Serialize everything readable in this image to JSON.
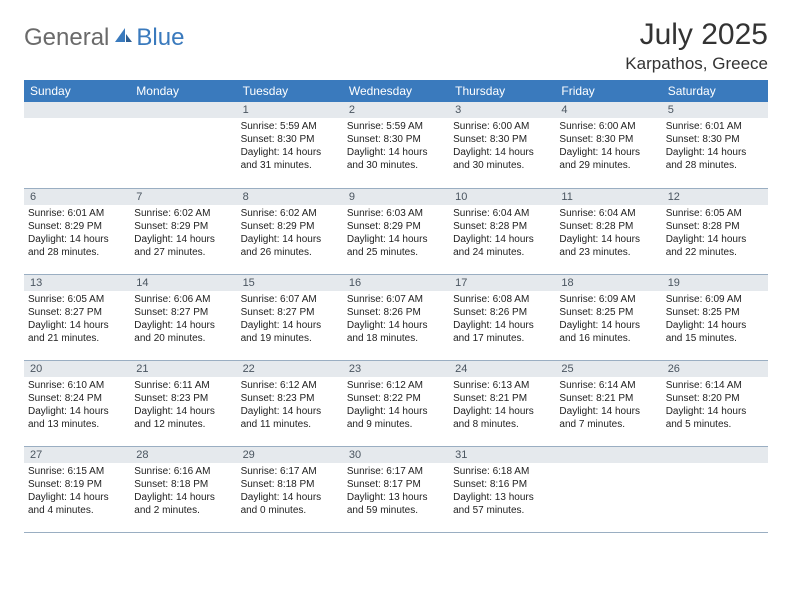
{
  "logo": {
    "word1": "General",
    "word2": "Blue"
  },
  "title": "July 2025",
  "subtitle": "Karpathos, Greece",
  "colors": {
    "header_bg": "#3a7abd",
    "header_text": "#ffffff",
    "daynum_bg": "#e5e9ed",
    "daynum_text": "#4a5560",
    "border": "#9aaec2",
    "title_text": "#333333",
    "body_text": "#222222",
    "logo_gray": "#6a6a6a",
    "logo_blue": "#3a7abd"
  },
  "day_names": [
    "Sunday",
    "Monday",
    "Tuesday",
    "Wednesday",
    "Thursday",
    "Friday",
    "Saturday"
  ],
  "leading_blanks": 2,
  "days": [
    {
      "n": 1,
      "sunrise": "5:59 AM",
      "sunset": "8:30 PM",
      "daylight": "14 hours and 31 minutes."
    },
    {
      "n": 2,
      "sunrise": "5:59 AM",
      "sunset": "8:30 PM",
      "daylight": "14 hours and 30 minutes."
    },
    {
      "n": 3,
      "sunrise": "6:00 AM",
      "sunset": "8:30 PM",
      "daylight": "14 hours and 30 minutes."
    },
    {
      "n": 4,
      "sunrise": "6:00 AM",
      "sunset": "8:30 PM",
      "daylight": "14 hours and 29 minutes."
    },
    {
      "n": 5,
      "sunrise": "6:01 AM",
      "sunset": "8:30 PM",
      "daylight": "14 hours and 28 minutes."
    },
    {
      "n": 6,
      "sunrise": "6:01 AM",
      "sunset": "8:29 PM",
      "daylight": "14 hours and 28 minutes."
    },
    {
      "n": 7,
      "sunrise": "6:02 AM",
      "sunset": "8:29 PM",
      "daylight": "14 hours and 27 minutes."
    },
    {
      "n": 8,
      "sunrise": "6:02 AM",
      "sunset": "8:29 PM",
      "daylight": "14 hours and 26 minutes."
    },
    {
      "n": 9,
      "sunrise": "6:03 AM",
      "sunset": "8:29 PM",
      "daylight": "14 hours and 25 minutes."
    },
    {
      "n": 10,
      "sunrise": "6:04 AM",
      "sunset": "8:28 PM",
      "daylight": "14 hours and 24 minutes."
    },
    {
      "n": 11,
      "sunrise": "6:04 AM",
      "sunset": "8:28 PM",
      "daylight": "14 hours and 23 minutes."
    },
    {
      "n": 12,
      "sunrise": "6:05 AM",
      "sunset": "8:28 PM",
      "daylight": "14 hours and 22 minutes."
    },
    {
      "n": 13,
      "sunrise": "6:05 AM",
      "sunset": "8:27 PM",
      "daylight": "14 hours and 21 minutes."
    },
    {
      "n": 14,
      "sunrise": "6:06 AM",
      "sunset": "8:27 PM",
      "daylight": "14 hours and 20 minutes."
    },
    {
      "n": 15,
      "sunrise": "6:07 AM",
      "sunset": "8:27 PM",
      "daylight": "14 hours and 19 minutes."
    },
    {
      "n": 16,
      "sunrise": "6:07 AM",
      "sunset": "8:26 PM",
      "daylight": "14 hours and 18 minutes."
    },
    {
      "n": 17,
      "sunrise": "6:08 AM",
      "sunset": "8:26 PM",
      "daylight": "14 hours and 17 minutes."
    },
    {
      "n": 18,
      "sunrise": "6:09 AM",
      "sunset": "8:25 PM",
      "daylight": "14 hours and 16 minutes."
    },
    {
      "n": 19,
      "sunrise": "6:09 AM",
      "sunset": "8:25 PM",
      "daylight": "14 hours and 15 minutes."
    },
    {
      "n": 20,
      "sunrise": "6:10 AM",
      "sunset": "8:24 PM",
      "daylight": "14 hours and 13 minutes."
    },
    {
      "n": 21,
      "sunrise": "6:11 AM",
      "sunset": "8:23 PM",
      "daylight": "14 hours and 12 minutes."
    },
    {
      "n": 22,
      "sunrise": "6:12 AM",
      "sunset": "8:23 PM",
      "daylight": "14 hours and 11 minutes."
    },
    {
      "n": 23,
      "sunrise": "6:12 AM",
      "sunset": "8:22 PM",
      "daylight": "14 hours and 9 minutes."
    },
    {
      "n": 24,
      "sunrise": "6:13 AM",
      "sunset": "8:21 PM",
      "daylight": "14 hours and 8 minutes."
    },
    {
      "n": 25,
      "sunrise": "6:14 AM",
      "sunset": "8:21 PM",
      "daylight": "14 hours and 7 minutes."
    },
    {
      "n": 26,
      "sunrise": "6:14 AM",
      "sunset": "8:20 PM",
      "daylight": "14 hours and 5 minutes."
    },
    {
      "n": 27,
      "sunrise": "6:15 AM",
      "sunset": "8:19 PM",
      "daylight": "14 hours and 4 minutes."
    },
    {
      "n": 28,
      "sunrise": "6:16 AM",
      "sunset": "8:18 PM",
      "daylight": "14 hours and 2 minutes."
    },
    {
      "n": 29,
      "sunrise": "6:17 AM",
      "sunset": "8:18 PM",
      "daylight": "14 hours and 0 minutes."
    },
    {
      "n": 30,
      "sunrise": "6:17 AM",
      "sunset": "8:17 PM",
      "daylight": "13 hours and 59 minutes."
    },
    {
      "n": 31,
      "sunrise": "6:18 AM",
      "sunset": "8:16 PM",
      "daylight": "13 hours and 57 minutes."
    }
  ],
  "labels": {
    "sunrise": "Sunrise: ",
    "sunset": "Sunset: ",
    "daylight": "Daylight: "
  }
}
